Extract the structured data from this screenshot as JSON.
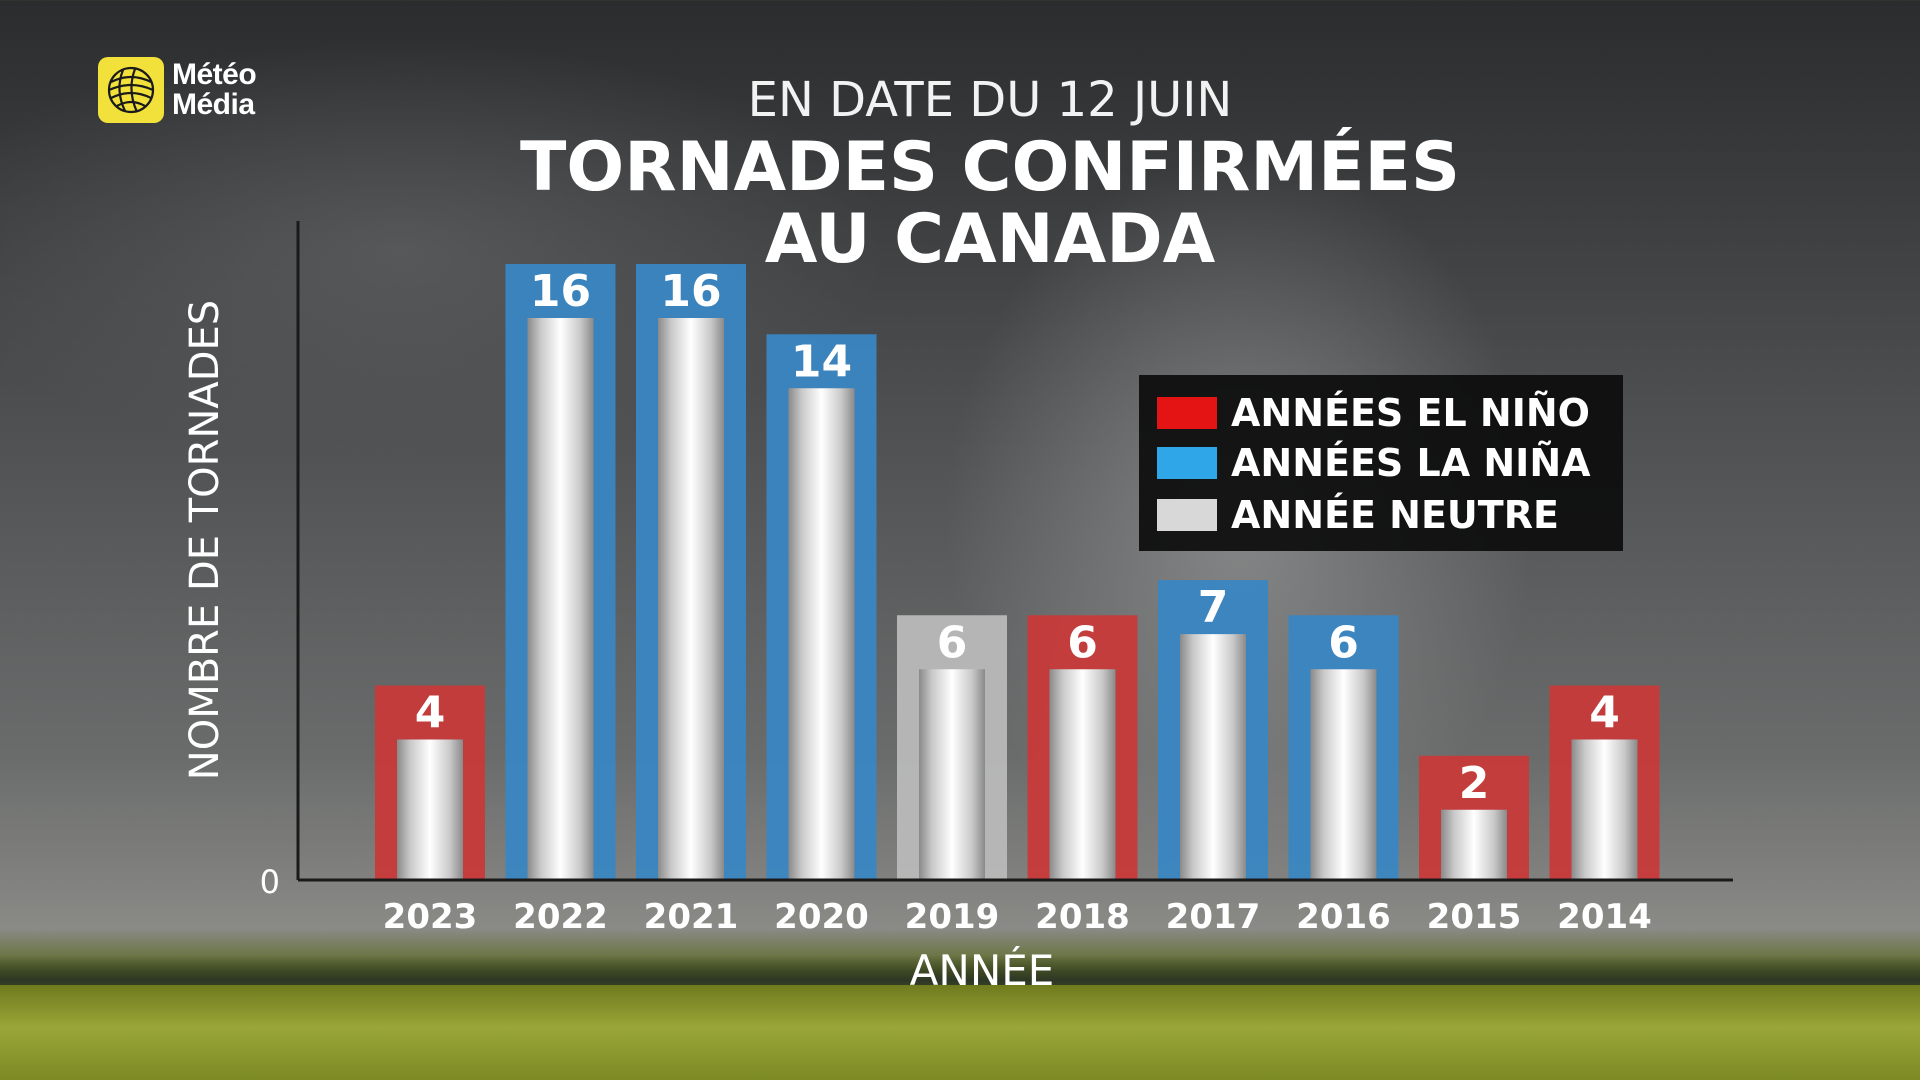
{
  "brand": {
    "logo_line1": "Météo",
    "logo_line2": "Média"
  },
  "header": {
    "subtitle": "EN DATE DU 12 JUIN",
    "title_line1": "TORNADES CONFIRMÉES",
    "title_line2": "AU CANADA"
  },
  "legend": [
    {
      "label": "ANNÉES EL NIÑO",
      "color": "#e41414"
    },
    {
      "label": "ANNÉES LA NIÑA",
      "color": "#2ea6e8"
    },
    {
      "label": "ANNÉE NEUTRE",
      "color": "#d8d8d8"
    }
  ],
  "chart_data": {
    "type": "bar",
    "xlabel": "ANNÉE",
    "ylabel": "NOMBRE DE TORNADES",
    "y_tick_label": "0",
    "categories": [
      "2023",
      "2022",
      "2021",
      "2020",
      "2019",
      "2018",
      "2017",
      "2016",
      "2015",
      "2014"
    ],
    "values": [
      4,
      16,
      16,
      14,
      6,
      6,
      7,
      6,
      2,
      4
    ],
    "enso_phase": [
      "El Niño",
      "La Niña",
      "La Niña",
      "La Niña",
      "Neutre",
      "El Niño",
      "La Niña",
      "La Niña",
      "El Niño",
      "El Niño"
    ],
    "colors": {
      "El Niño": "#c83a3a",
      "La Niña": "#3a86c2",
      "Neutre": "#b9b9b9"
    },
    "ylim": [
      0,
      20
    ],
    "legend_position": "right"
  }
}
